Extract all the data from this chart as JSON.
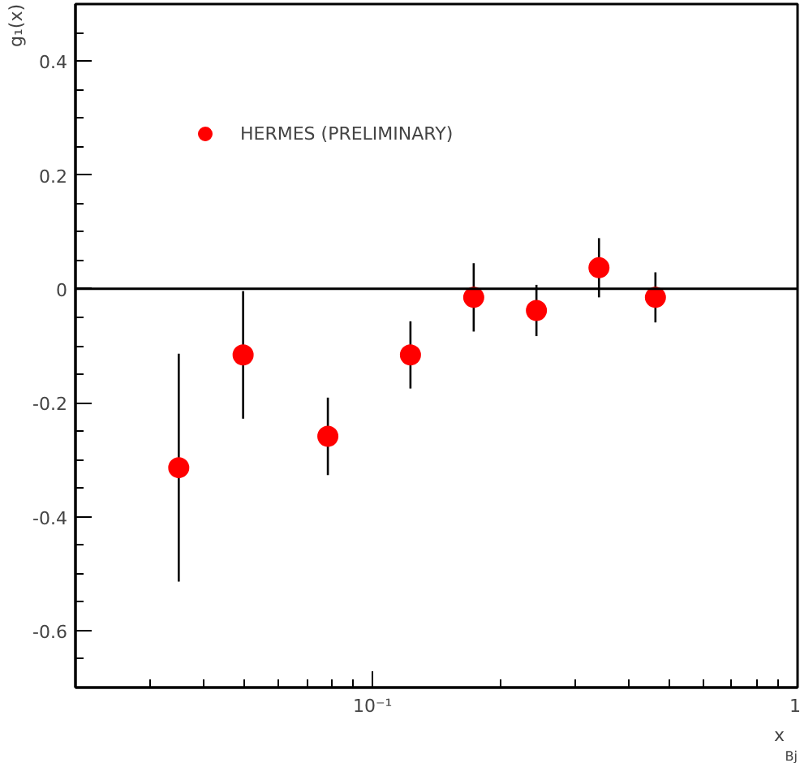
{
  "chart_data": {
    "type": "scatter",
    "xlabel": "x$_{Bj}$",
    "ylabel": "g₁(x)",
    "log": "x",
    "x": [
      0.035,
      0.0496,
      0.0785,
      0.1228,
      0.173,
      0.243,
      0.341,
      0.463
    ],
    "series": [
      {
        "name": "HERMES (PRELIMINARY)",
        "color": "#ff0000",
        "values": [
          -0.314,
          -0.116,
          -0.259,
          -0.116,
          -0.015,
          -0.038,
          0.037,
          -0.015
        ],
        "errors": [
          0.2,
          0.112,
          0.068,
          0.059,
          0.06,
          0.045,
          0.052,
          0.044
        ]
      }
    ],
    "xlim": [
      0.02,
      1
    ],
    "ylim": [
      -0.7,
      0.5
    ],
    "xticks": [
      {
        "value": 0.1,
        "label": "10⁻¹"
      },
      1
    ],
    "yticks": [
      -0.6,
      -0.4,
      -0.2,
      0,
      0.2,
      0.4
    ],
    "ref_lines": [
      {
        "axis": "y",
        "value": 0,
        "color": "#000000"
      }
    ],
    "marker": "circle",
    "legend": "top left",
    "grid": false
  }
}
